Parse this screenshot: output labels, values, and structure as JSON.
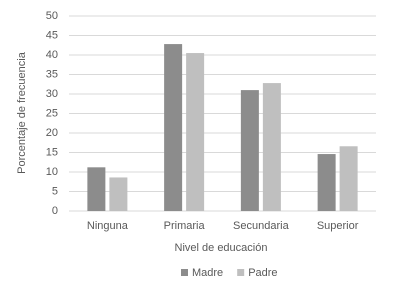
{
  "chart_data": {
    "type": "bar",
    "x_label": "Nivel de educación",
    "y_label": "Porcentaje de frecuencia",
    "categories": [
      "Ninguna",
      "Primaria",
      "Secundaria",
      "Superior"
    ],
    "series": [
      {
        "name": "Madre",
        "color": "#8c8c8c",
        "values": [
          11.2,
          42.8,
          31,
          14.6
        ]
      },
      {
        "name": "Padre",
        "color": "#bfbfbf",
        "values": [
          8.6,
          40.5,
          32.8,
          16.6
        ]
      }
    ],
    "ylim": [
      0,
      50
    ],
    "yticks": [
      0,
      5,
      10,
      15,
      20,
      25,
      30,
      35,
      40,
      45,
      50
    ],
    "grid": true,
    "legend": "bottom"
  }
}
